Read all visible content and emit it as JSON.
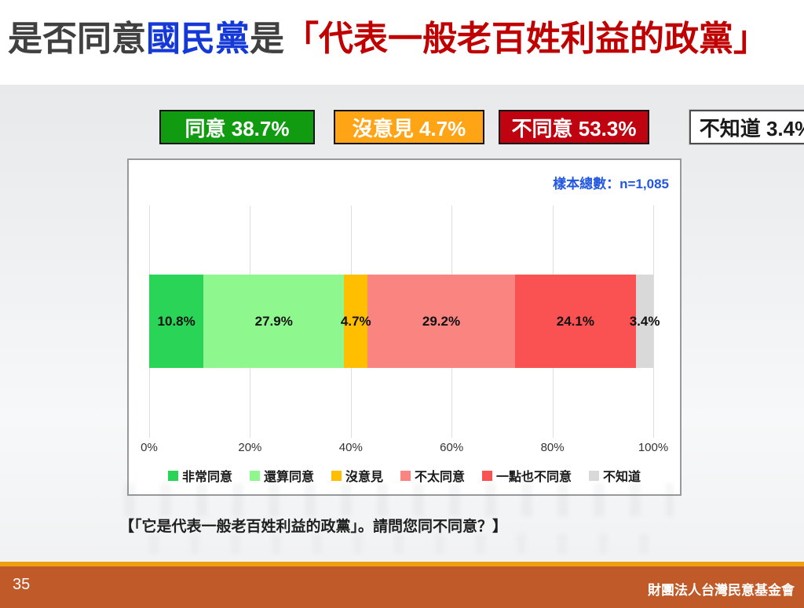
{
  "title": {
    "part1": "是否同意",
    "highlight": "國民黨",
    "part2": "是",
    "quote": "「代表一般老百姓利益的政黨」",
    "highlight_color": "#1539D6",
    "quote_color": "#C00000"
  },
  "summary_boxes": [
    {
      "key": "agree",
      "label": "同意 38.7%",
      "bg": "#119B11",
      "text_color": "#FFFFFF",
      "border": "#141414"
    },
    {
      "key": "no-opinion",
      "label": "沒意見 4.7%",
      "bg": "#FFA414",
      "text_color": "#FFFFFF",
      "border": "#141414"
    },
    {
      "key": "disagree",
      "label": "不同意 53.3%",
      "bg": "#C00310",
      "text_color": "#FFFFFF",
      "border": "#141414"
    },
    {
      "key": "dont-know",
      "label": "不知道 3.4%",
      "bg": "#FFFFFF",
      "text_color": "#1A1A1A",
      "border": "#4D4D4D"
    }
  ],
  "chart": {
    "sample_note": "樣本總數：n=1,085"
  },
  "chart_data": {
    "type": "bar",
    "stacked": true,
    "orientation": "horizontal",
    "title": "是否同意國民黨是「代表一般老百姓利益的政黨」",
    "series": [
      {
        "name": "非常同意",
        "value": 10.8,
        "label": "10.8%",
        "color": "#2AD457"
      },
      {
        "name": "還算同意",
        "value": 27.9,
        "label": "27.9%",
        "color": "#8EF88E"
      },
      {
        "name": "沒意見",
        "value": 4.7,
        "label": "4.7%",
        "color": "#FFBE00"
      },
      {
        "name": "不太同意",
        "value": 29.2,
        "label": "29.2%",
        "color": "#FA8480"
      },
      {
        "name": "一點也不同意",
        "value": 24.1,
        "label": "24.1%",
        "color": "#FA5252"
      },
      {
        "name": "不知道",
        "value": 3.4,
        "label": "3.4%",
        "color": "#D9D9D9"
      }
    ],
    "x_ticks": [
      "0%",
      "20%",
      "40%",
      "60%",
      "80%",
      "100%"
    ],
    "xlim": [
      0,
      100
    ],
    "grid": true,
    "legend_position": "bottom",
    "sample_note": "樣本總數：n=1,085"
  },
  "caption": "【「它是代表一般老百姓利益的政黨」。請問您同不同意？】",
  "footer": {
    "page": "35",
    "org": "財團法人台灣民意基金會",
    "bar_color": "#C05A29",
    "stripe_color": "#EE9F10"
  }
}
